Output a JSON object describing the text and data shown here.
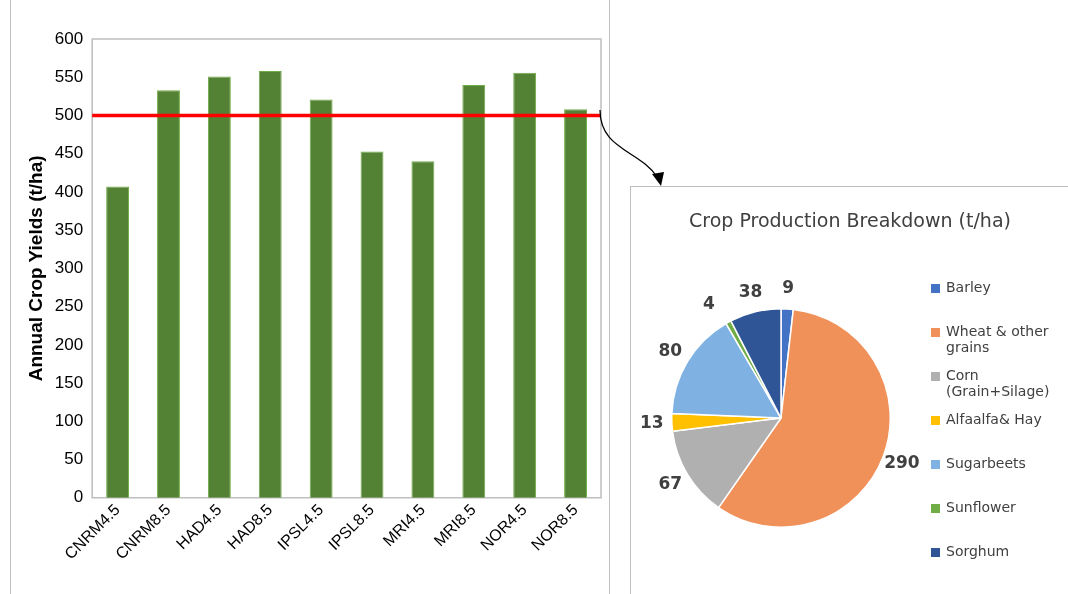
{
  "chart_data": [
    {
      "type": "bar",
      "ylabel": "Annual Crop Yields (t/ha)",
      "categories": [
        "CNRM4.5",
        "CNRM8.5",
        "HAD4.5",
        "HAD8.5",
        "IPSL4.5",
        "IPSL8.5",
        "MRI4.5",
        "MRI8.5",
        "NOR4.5",
        "NOR8.5"
      ],
      "values": [
        407,
        533,
        551,
        558,
        521,
        453,
        440,
        540,
        556,
        508
      ],
      "color": "#548235",
      "ylim": [
        0,
        600
      ],
      "yticks": [
        0,
        50,
        100,
        150,
        200,
        250,
        300,
        350,
        400,
        450,
        500,
        550,
        600
      ],
      "grid": false,
      "legend": false,
      "ref_lines": [
        {
          "axis": "y",
          "value": 500,
          "color": "#ff0000"
        }
      ]
    },
    {
      "type": "pie",
      "title": "Crop Production Breakdown (t/ha)",
      "categories": [
        "Barley",
        "Wheat & other grains",
        "Corn (Grain+Silage)",
        "Alfaalfa& Hay",
        "Sugarbeets",
        "Sunflower",
        "Sorghum"
      ],
      "values": [
        9,
        290,
        67,
        13,
        80,
        4,
        38
      ],
      "colors": [
        "#4472c4",
        "#f0915a",
        "#b0b0b0",
        "#ffc000",
        "#7fb2e2",
        "#70ad47",
        "#2f5597"
      ],
      "data_labels": true,
      "legend": "right"
    }
  ]
}
